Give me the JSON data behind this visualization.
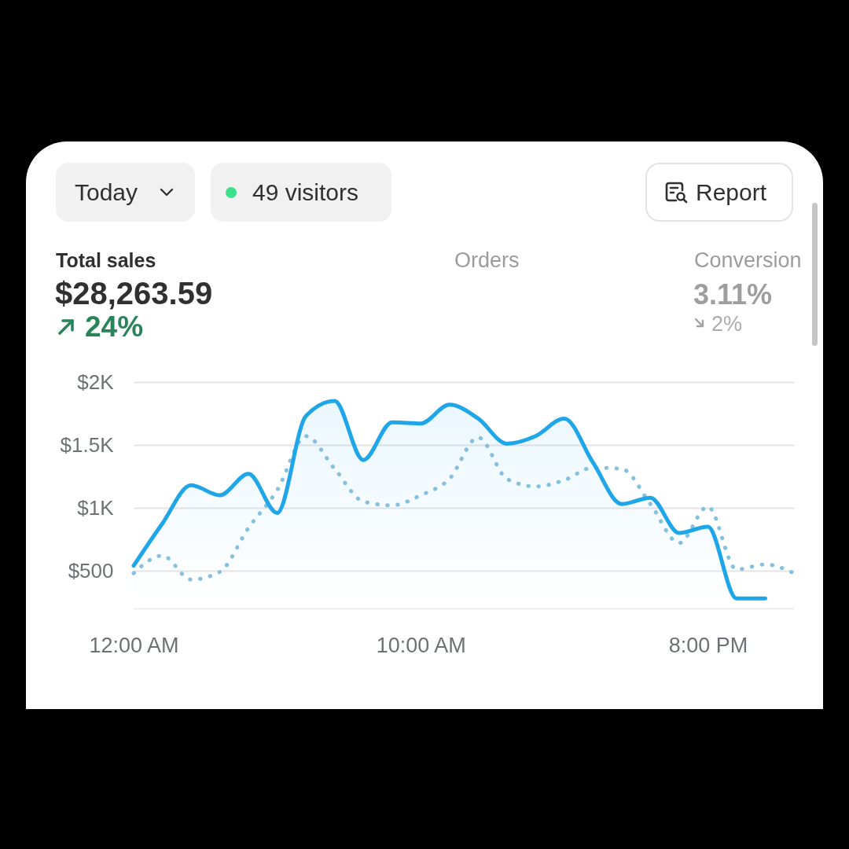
{
  "chart_data": {
    "type": "line",
    "title": "Total sales",
    "subtitle": "$28,263.59",
    "annotations": [
      "Today",
      "49 visitors",
      "Report",
      "24%",
      "Orders",
      "Conversion",
      "3.11%",
      "2%"
    ],
    "x": [
      0,
      1,
      2,
      3,
      4,
      5,
      6,
      7,
      8,
      9,
      10,
      11,
      12,
      13,
      14,
      15,
      16,
      17,
      18,
      19,
      20,
      21,
      22,
      23
    ],
    "series": [
      {
        "type": "area",
        "color": "#1ea6e8",
        "line_style": "solid",
        "values": [
          540,
          875,
          1180,
          1100,
          1270,
          960,
          1730,
          1850,
          1380,
          1680,
          1670,
          1820,
          1710,
          1510,
          1570,
          1710,
          1360,
          1030,
          1080,
          800,
          850,
          280,
          280,
          null
        ]
      },
      {
        "color": "#86c0df",
        "line_style": "dotted",
        "values": [
          480,
          620,
          430,
          490,
          840,
          1140,
          1570,
          1310,
          1050,
          1020,
          1100,
          1230,
          1560,
          1230,
          1170,
          1220,
          1320,
          1310,
          1030,
          720,
          1010,
          510,
          550,
          480
        ]
      }
    ],
    "xlim": [
      0,
      23
    ],
    "xticks": [
      {
        "value": 0,
        "label": "12:00 AM"
      },
      {
        "value": 10,
        "label": "10:00 AM"
      },
      {
        "value": 20,
        "label": "8:00 PM"
      }
    ],
    "ylim": [
      200,
      2000
    ],
    "yticks": [
      {
        "value": 500,
        "label": "$500"
      },
      {
        "value": 1000,
        "label": "$1K"
      },
      {
        "value": 1500,
        "label": "$1.5K"
      },
      {
        "value": 2000,
        "label": "$2K"
      }
    ],
    "grid": "y"
  }
}
